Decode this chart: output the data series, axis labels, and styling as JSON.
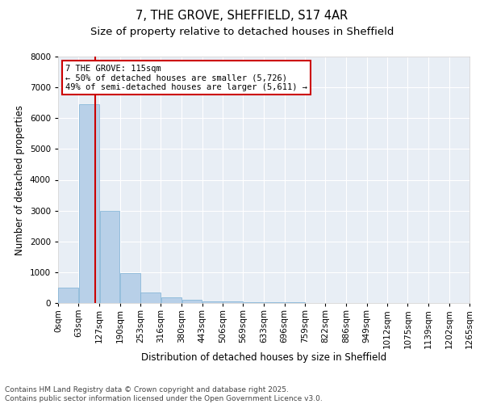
{
  "title": "7, THE GROVE, SHEFFIELD, S17 4AR",
  "subtitle": "Size of property relative to detached houses in Sheffield",
  "xlabel": "Distribution of detached houses by size in Sheffield",
  "ylabel": "Number of detached properties",
  "bar_color": "#b8d0e8",
  "bar_edge_color": "#7aafd4",
  "bg_color": "#e8eef5",
  "grid_color": "white",
  "property_size": 115,
  "vline_color": "#cc0000",
  "annotation_text": "7 THE GROVE: 115sqm\n← 50% of detached houses are smaller (5,726)\n49% of semi-detached houses are larger (5,611) →",
  "annotation_box_color": "#cc0000",
  "footnote": "Contains HM Land Registry data © Crown copyright and database right 2025.\nContains public sector information licensed under the Open Government Licence v3.0.",
  "bin_edges": [
    0,
    63,
    127,
    190,
    253,
    316,
    380,
    443,
    506,
    569,
    633,
    696,
    759,
    822,
    886,
    949,
    1012,
    1075,
    1139,
    1202,
    1265
  ],
  "bar_heights": [
    500,
    6450,
    2980,
    970,
    350,
    180,
    105,
    60,
    40,
    30,
    20,
    15,
    10,
    8,
    5,
    3,
    2,
    2,
    1,
    1
  ],
  "ylim": [
    0,
    8000
  ],
  "yticks": [
    0,
    1000,
    2000,
    3000,
    4000,
    5000,
    6000,
    7000,
    8000
  ],
  "tick_label_fontsize": 7.5,
  "title_fontsize": 10.5,
  "subtitle_fontsize": 9.5,
  "xlabel_fontsize": 8.5,
  "ylabel_fontsize": 8.5,
  "footnote_fontsize": 6.5,
  "annotation_fontsize": 7.5
}
